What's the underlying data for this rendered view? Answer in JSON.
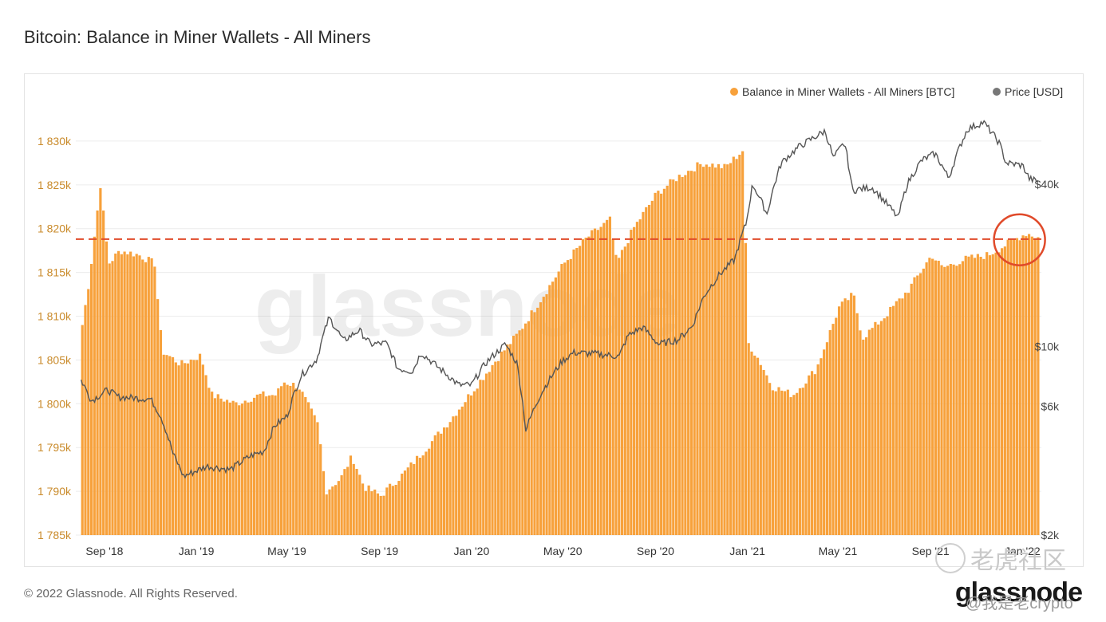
{
  "title": "Bitcoin: Balance in Miner Wallets - All Miners",
  "copyright": "© 2022 Glassnode. All Rights Reserved.",
  "brand": "glassnode",
  "watermark_text": "glassnode",
  "stamp_text": "老虎社区",
  "handle": "@我是老crypto",
  "colors": {
    "balance": "#f7a13b",
    "price": "#555555",
    "threshold": "#e04a2a",
    "axis_left": "#c98a2a",
    "axis_right": "#444444"
  },
  "chart_data": {
    "type": "area",
    "x_ticks": [
      "Sep '18",
      "Jan '19",
      "May '19",
      "Sep '19",
      "Jan '20",
      "May '20",
      "Sep '20",
      "Jan '21",
      "May '21",
      "Sep '21",
      "Jan '22"
    ],
    "y_left_ticks": [
      "1 785k",
      "1 790k",
      "1 795k",
      "1 800k",
      "1 805k",
      "1 810k",
      "1 815k",
      "1 820k",
      "1 825k",
      "1 830k"
    ],
    "y_left_range": [
      1785000,
      1834000
    ],
    "y_right_ticks": [
      "$2k",
      "$6k",
      "$10k",
      "$40k"
    ],
    "y_right_values": [
      2000,
      6000,
      10000,
      40000
    ],
    "y_right_scale": "log",
    "grid": true,
    "legend_position": "top-right",
    "threshold_line": 1818800,
    "highlight": "latest balance circled",
    "series": [
      {
        "name": "Balance in Miner Wallets - All Miners [BTC]",
        "axis": "left",
        "points": [
          [
            "2018-08-01",
            1809000
          ],
          [
            "2018-08-10",
            1814000
          ],
          [
            "2018-08-25",
            1825000
          ],
          [
            "2018-09-05",
            1816000
          ],
          [
            "2018-09-20",
            1817500
          ],
          [
            "2018-10-15",
            1817000
          ],
          [
            "2018-11-05",
            1816000
          ],
          [
            "2018-11-15",
            1806000
          ],
          [
            "2018-12-10",
            1804500
          ],
          [
            "2019-01-05",
            1805500
          ],
          [
            "2019-01-20",
            1801000
          ],
          [
            "2019-02-20",
            1800000
          ],
          [
            "2019-03-25",
            1801000
          ],
          [
            "2019-04-15",
            1801000
          ],
          [
            "2019-04-25",
            1802500
          ],
          [
            "2019-05-15",
            1802000
          ],
          [
            "2019-06-10",
            1797500
          ],
          [
            "2019-06-20",
            1790000
          ],
          [
            "2019-07-10",
            1791500
          ],
          [
            "2019-07-25",
            1794000
          ],
          [
            "2019-08-10",
            1790500
          ],
          [
            "2019-09-01",
            1789500
          ],
          [
            "2019-10-01",
            1792000
          ],
          [
            "2019-11-01",
            1795000
          ],
          [
            "2019-12-01",
            1798000
          ],
          [
            "2020-01-01",
            1801500
          ],
          [
            "2020-02-01",
            1805000
          ],
          [
            "2020-03-01",
            1808000
          ],
          [
            "2020-04-01",
            1812000
          ],
          [
            "2020-05-01",
            1816000
          ],
          [
            "2020-06-01",
            1819000
          ],
          [
            "2020-07-01",
            1821000
          ],
          [
            "2020-07-10",
            1816000
          ],
          [
            "2020-08-01",
            1820000
          ],
          [
            "2020-09-01",
            1824000
          ],
          [
            "2020-10-01",
            1826000
          ],
          [
            "2020-11-01",
            1827500
          ],
          [
            "2020-12-01",
            1827000
          ],
          [
            "2020-12-25",
            1829000
          ],
          [
            "2020-12-31",
            1807000
          ],
          [
            "2021-01-15",
            1805000
          ],
          [
            "2021-02-01",
            1802000
          ],
          [
            "2021-03-01",
            1801000
          ],
          [
            "2021-04-01",
            1804000
          ],
          [
            "2021-05-01",
            1811000
          ],
          [
            "2021-05-20",
            1812500
          ],
          [
            "2021-06-01",
            1807500
          ],
          [
            "2021-07-01",
            1810000
          ],
          [
            "2021-08-01",
            1813000
          ],
          [
            "2021-09-01",
            1817000
          ],
          [
            "2021-09-15",
            1815500
          ],
          [
            "2021-10-15",
            1816500
          ],
          [
            "2021-11-15",
            1817000
          ],
          [
            "2021-12-15",
            1818500
          ],
          [
            "2022-01-05",
            1819500
          ],
          [
            "2022-01-20",
            1819000
          ]
        ]
      },
      {
        "name": "Price [USD]",
        "axis": "right",
        "points": [
          [
            "2018-08-01",
            7500
          ],
          [
            "2018-08-15",
            6300
          ],
          [
            "2018-09-05",
            6900
          ],
          [
            "2018-09-20",
            6500
          ],
          [
            "2018-11-01",
            6400
          ],
          [
            "2018-11-15",
            5500
          ],
          [
            "2018-12-01",
            4000
          ],
          [
            "2018-12-15",
            3300
          ],
          [
            "2019-01-15",
            3600
          ],
          [
            "2019-02-15",
            3500
          ],
          [
            "2019-03-15",
            3950
          ],
          [
            "2019-04-01",
            4100
          ],
          [
            "2019-04-15",
            5100
          ],
          [
            "2019-05-01",
            5500
          ],
          [
            "2019-05-20",
            7800
          ],
          [
            "2019-06-10",
            9000
          ],
          [
            "2019-06-26",
            12800
          ],
          [
            "2019-07-15",
            10500
          ],
          [
            "2019-08-05",
            11500
          ],
          [
            "2019-08-20",
            10200
          ],
          [
            "2019-09-10",
            10300
          ],
          [
            "2019-09-25",
            8300
          ],
          [
            "2019-10-15",
            8100
          ],
          [
            "2019-10-26",
            9500
          ],
          [
            "2019-11-15",
            8500
          ],
          [
            "2019-12-15",
            7200
          ],
          [
            "2020-01-01",
            7200
          ],
          [
            "2020-01-20",
            8700
          ],
          [
            "2020-02-15",
            10200
          ],
          [
            "2020-03-01",
            8700
          ],
          [
            "2020-03-13",
            4900
          ],
          [
            "2020-04-01",
            6600
          ],
          [
            "2020-04-30",
            8800
          ],
          [
            "2020-05-15",
            9500
          ],
          [
            "2020-06-15",
            9400
          ],
          [
            "2020-07-15",
            9200
          ],
          [
            "2020-07-27",
            11000
          ],
          [
            "2020-08-15",
            11800
          ],
          [
            "2020-09-05",
            10200
          ],
          [
            "2020-10-01",
            10600
          ],
          [
            "2020-10-20",
            11900
          ],
          [
            "2020-11-05",
            15500
          ],
          [
            "2020-11-25",
            18500
          ],
          [
            "2020-12-15",
            21000
          ],
          [
            "2020-12-31",
            29000
          ],
          [
            "2021-01-08",
            40000
          ],
          [
            "2021-01-27",
            31000
          ],
          [
            "2021-02-15",
            48000
          ],
          [
            "2021-03-10",
            55000
          ],
          [
            "2021-04-14",
            63000
          ],
          [
            "2021-04-25",
            50000
          ],
          [
            "2021-05-10",
            57000
          ],
          [
            "2021-05-20",
            38000
          ],
          [
            "2021-06-15",
            39000
          ],
          [
            "2021-07-20",
            30000
          ],
          [
            "2021-08-01",
            40000
          ],
          [
            "2021-08-20",
            49000
          ],
          [
            "2021-09-07",
            52000
          ],
          [
            "2021-09-25",
            42000
          ],
          [
            "2021-10-20",
            64000
          ],
          [
            "2021-11-10",
            68000
          ],
          [
            "2021-12-01",
            57000
          ],
          [
            "2021-12-10",
            48000
          ],
          [
            "2022-01-01",
            47000
          ],
          [
            "2022-01-10",
            42000
          ],
          [
            "2022-01-20",
            41000
          ]
        ]
      }
    ]
  }
}
